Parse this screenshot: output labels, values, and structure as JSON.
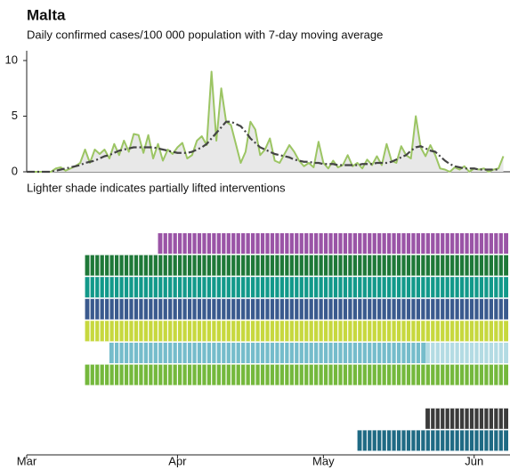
{
  "chart_data": {
    "type": "line",
    "title": "Malta",
    "subtitle": "Daily confirmed cases/100 000 population with 7-day moving average",
    "note": "Lighter shade indicates partially lifted interventions",
    "x": [
      0,
      1,
      2,
      3,
      4,
      5,
      6,
      7,
      8,
      9,
      10,
      11,
      12,
      13,
      14,
      15,
      16,
      17,
      18,
      19,
      20,
      21,
      22,
      23,
      24,
      25,
      26,
      27,
      28,
      29,
      30,
      31,
      32,
      33,
      34,
      35,
      36,
      37,
      38,
      39,
      40,
      41,
      42,
      43,
      44,
      45,
      46,
      47,
      48,
      49,
      50,
      51,
      52,
      53,
      54,
      55,
      56,
      57,
      58,
      59,
      60,
      61,
      62,
      63,
      64,
      65,
      66,
      67,
      68,
      69,
      70,
      71,
      72,
      73,
      74,
      75,
      76,
      77,
      78,
      79,
      80,
      81,
      82,
      83,
      84,
      85,
      86,
      87,
      88,
      89,
      90,
      91,
      92,
      93,
      94,
      95,
      96,
      97,
      98
    ],
    "xlim": [
      0,
      99
    ],
    "xticks": [
      {
        "value": 0,
        "label": "Mar"
      },
      {
        "value": 31,
        "label": "Apr"
      },
      {
        "value": 61,
        "label": "May"
      },
      {
        "value": 92,
        "label": "Jun"
      }
    ],
    "ylim": [
      0,
      10.8
    ],
    "yticks": [
      0,
      5,
      10
    ],
    "series": [
      {
        "color": "#9cc564",
        "area_color": "#e8e8e8",
        "values": [
          0,
          0,
          0,
          0,
          0,
          0,
          0.3,
          0.4,
          0.1,
          0.3,
          0.5,
          0.8,
          2.0,
          0.8,
          2.0,
          1.6,
          2.0,
          1.2,
          2.5,
          1.5,
          2.8,
          1.8,
          3.4,
          3.3,
          1.7,
          3.3,
          1.2,
          2.5,
          1.0,
          2.0,
          1.6,
          2.2,
          2.6,
          1.2,
          1.5,
          2.8,
          3.2,
          2.4,
          9.0,
          2.8,
          7.5,
          4.5,
          4.2,
          2.5,
          0.8,
          1.8,
          4.5,
          3.8,
          1.5,
          2.0,
          3.0,
          1.0,
          0.8,
          1.6,
          2.4,
          1.8,
          1.0,
          0.5,
          0.8,
          0.4,
          2.7,
          0.8,
          0.3,
          1.0,
          0.4,
          0.6,
          1.5,
          0.5,
          0.8,
          0.3,
          1.1,
          0.6,
          1.4,
          0.6,
          2.5,
          1.0,
          0.8,
          2.3,
          1.5,
          1.2,
          5.0,
          2.2,
          1.4,
          2.4,
          1.5,
          0.3,
          0.2,
          0.0,
          0.4,
          0.2,
          0.5,
          0.0,
          0.3,
          0.2,
          0.3,
          0.0,
          0.2,
          0.3,
          1.4
        ]
      },
      {
        "color": "#444444",
        "dashed": true,
        "values": [
          0,
          0,
          0,
          0,
          0,
          0,
          0.1,
          0.2,
          0.3,
          0.4,
          0.5,
          0.6,
          0.8,
          0.9,
          1.0,
          1.2,
          1.4,
          1.5,
          1.7,
          1.9,
          2.0,
          2.1,
          2.2,
          2.2,
          2.2,
          2.2,
          2.2,
          2.1,
          2.0,
          1.9,
          1.8,
          1.7,
          1.7,
          1.7,
          1.8,
          2.0,
          2.2,
          2.5,
          3.0,
          3.5,
          4.0,
          4.5,
          4.5,
          4.3,
          4.1,
          3.6,
          3.0,
          2.6,
          2.2,
          2.0,
          1.8,
          1.6,
          1.5,
          1.4,
          1.3,
          1.1,
          1.0,
          0.9,
          0.9,
          0.8,
          0.8,
          0.7,
          0.7,
          0.7,
          0.6,
          0.6,
          0.6,
          0.6,
          0.6,
          0.7,
          0.7,
          0.7,
          0.8,
          0.8,
          0.8,
          0.9,
          1.1,
          1.3,
          1.5,
          1.9,
          2.2,
          2.3,
          2.1,
          1.9,
          1.8,
          1.4,
          1.0,
          0.7,
          0.5,
          0.4,
          0.3,
          0.3,
          0.3,
          0.2,
          0.2,
          0.2,
          0.2,
          0.2,
          null
        ]
      }
    ],
    "interventions": [
      {
        "segments": [
          {
            "start": 27,
            "end": 99,
            "color": "#9a54a6"
          }
        ]
      },
      {
        "segments": [
          {
            "start": 12,
            "end": 99,
            "color": "#1e7838"
          }
        ]
      },
      {
        "segments": [
          {
            "start": 12,
            "end": 99,
            "color": "#12998a"
          }
        ]
      },
      {
        "segments": [
          {
            "start": 12,
            "end": 99,
            "color": "#3a5a8e"
          }
        ]
      },
      {
        "segments": [
          {
            "start": 12,
            "end": 99,
            "color": "#c7d83e"
          }
        ]
      },
      {
        "segments": [
          {
            "start": 17,
            "end": 82,
            "color": "#75bccb"
          },
          {
            "start": 82,
            "end": 99,
            "color": "#b3dbe3"
          }
        ]
      },
      {
        "segments": [
          {
            "start": 12,
            "end": 99,
            "color": "#74b83c"
          }
        ]
      },
      null,
      {
        "segments": [
          {
            "start": 82,
            "end": 99,
            "color": "#3b3b3b"
          }
        ]
      },
      {
        "segments": [
          {
            "start": 68,
            "end": 99,
            "color": "#1f6a84"
          }
        ]
      }
    ]
  }
}
